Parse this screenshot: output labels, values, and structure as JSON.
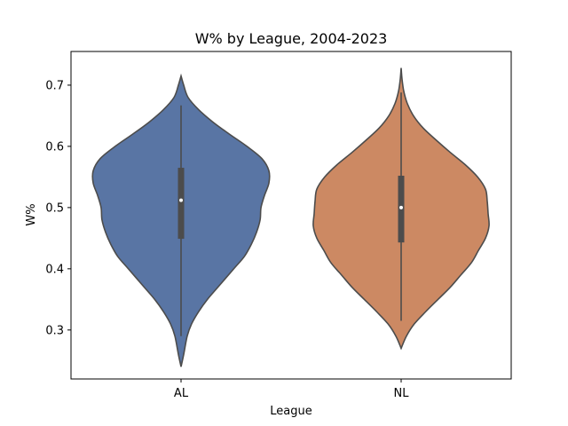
{
  "chart_data": {
    "type": "violin",
    "title": "W% by League, 2004-2023",
    "xlabel": "League",
    "ylabel": "W%",
    "categories": [
      "AL",
      "NL"
    ],
    "ylim": [
      0.22,
      0.755
    ],
    "yticks": [
      0.3,
      0.4,
      0.5,
      0.6,
      0.7
    ],
    "ytick_labels": [
      "0.3",
      "0.4",
      "0.5",
      "0.6",
      "0.7"
    ],
    "grid": false,
    "series": [
      {
        "category": "AL",
        "color": "#5975a4",
        "min": 0.24,
        "max": 0.715,
        "whisker_low": 0.29,
        "whisker_high": 0.667,
        "q1": 0.449,
        "median": 0.512,
        "q3": 0.565,
        "density": [
          [
            0.24,
            0.0
          ],
          [
            0.26,
            0.03
          ],
          [
            0.29,
            0.07
          ],
          [
            0.31,
            0.12
          ],
          [
            0.33,
            0.2
          ],
          [
            0.35,
            0.3
          ],
          [
            0.37,
            0.42
          ],
          [
            0.4,
            0.6
          ],
          [
            0.42,
            0.72
          ],
          [
            0.44,
            0.8
          ],
          [
            0.46,
            0.86
          ],
          [
            0.48,
            0.9
          ],
          [
            0.5,
            0.91
          ],
          [
            0.52,
            0.95
          ],
          [
            0.54,
            1.0
          ],
          [
            0.56,
            1.0
          ],
          [
            0.58,
            0.92
          ],
          [
            0.6,
            0.75
          ],
          [
            0.62,
            0.55
          ],
          [
            0.64,
            0.36
          ],
          [
            0.66,
            0.2
          ],
          [
            0.68,
            0.08
          ],
          [
            0.7,
            0.03
          ],
          [
            0.715,
            0.0
          ]
        ]
      },
      {
        "category": "NL",
        "color": "#cc8963",
        "min": 0.27,
        "max": 0.728,
        "whisker_low": 0.315,
        "whisker_high": 0.688,
        "q1": 0.443,
        "median": 0.5,
        "q3": 0.552,
        "density": [
          [
            0.27,
            0.0
          ],
          [
            0.29,
            0.06
          ],
          [
            0.31,
            0.15
          ],
          [
            0.33,
            0.28
          ],
          [
            0.35,
            0.42
          ],
          [
            0.37,
            0.56
          ],
          [
            0.39,
            0.68
          ],
          [
            0.41,
            0.8
          ],
          [
            0.43,
            0.88
          ],
          [
            0.45,
            0.96
          ],
          [
            0.47,
            1.0
          ],
          [
            0.49,
            0.99
          ],
          [
            0.51,
            0.98
          ],
          [
            0.53,
            0.96
          ],
          [
            0.55,
            0.87
          ],
          [
            0.57,
            0.73
          ],
          [
            0.59,
            0.56
          ],
          [
            0.61,
            0.4
          ],
          [
            0.63,
            0.25
          ],
          [
            0.65,
            0.14
          ],
          [
            0.67,
            0.07
          ],
          [
            0.69,
            0.03
          ],
          [
            0.71,
            0.01
          ],
          [
            0.728,
            0.0
          ]
        ]
      }
    ]
  }
}
